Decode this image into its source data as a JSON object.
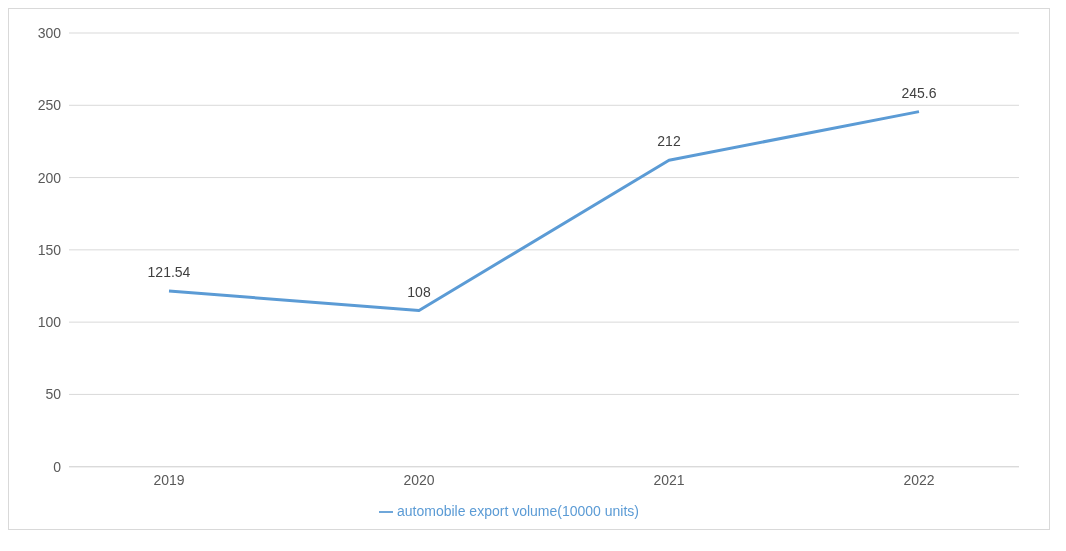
{
  "chart_data": {
    "type": "line",
    "categories": [
      "2019",
      "2020",
      "2021",
      "2022"
    ],
    "series": [
      {
        "name": "automobile export volume(10000 units)",
        "color": "#5b9bd5",
        "values": [
          121.54,
          108,
          212,
          245.6
        ]
      }
    ],
    "ylim": [
      0,
      300
    ],
    "yticks": [
      0,
      50,
      100,
      150,
      200,
      250,
      300
    ],
    "grid": "y",
    "legend": "bottom",
    "marker": "none",
    "data_labels": true
  }
}
